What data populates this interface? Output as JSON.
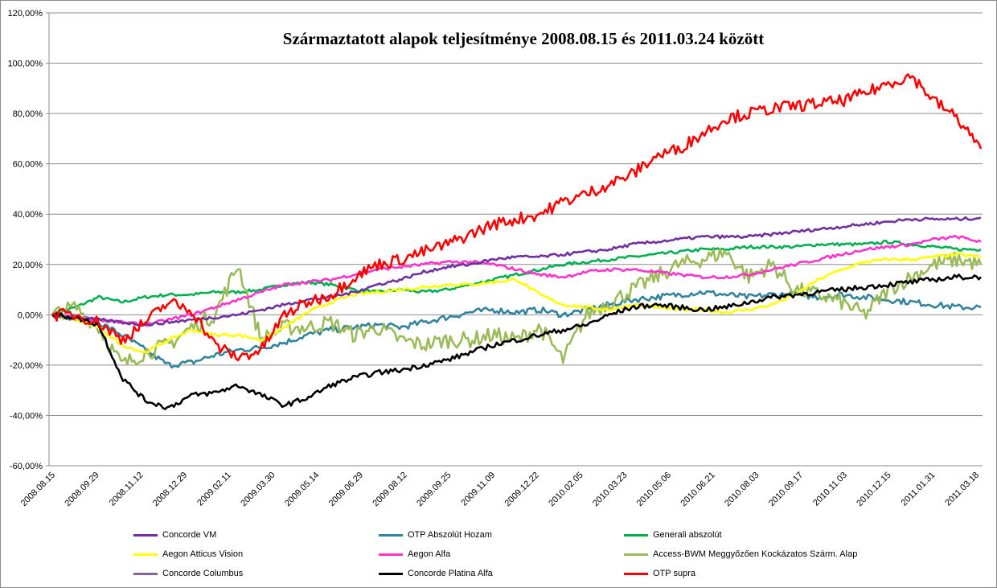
{
  "chart_data": {
    "type": "line",
    "title": "Származtatott  alapok teljesítménye 2008.08.15 és 2011.03.24 között",
    "xlabel": "",
    "ylabel": "",
    "ylim": [
      -60,
      120
    ],
    "yticks": [
      -60,
      -40,
      -20,
      0,
      20,
      40,
      60,
      80,
      100,
      120
    ],
    "ytick_labels": [
      "-60,00%",
      "-40,00%",
      "-20,00%",
      "0,00%",
      "20,00%",
      "40,00%",
      "60,00%",
      "80,00%",
      "100,00%",
      "120,00%"
    ],
    "x_tick_labels": [
      "2008.08.15",
      "2008.09.29",
      "2008.11.12",
      "2008.12.29",
      "2009.02.11",
      "2009.03.30",
      "2009.05.14",
      "2009.06.29",
      "2009.08.12",
      "2009.09.25",
      "2009.11.09",
      "2009.12.22",
      "2010.02.05",
      "2010.03.23",
      "2010.05.06",
      "2010.06.21",
      "2010.08.03",
      "2010.09.17",
      "2010.11.03",
      "2010.12.15",
      "2011.01.31",
      "2011.03.18"
    ],
    "grid": "horizontal",
    "legend_position": "bottom",
    "series": [
      {
        "name": "Concorde VM",
        "color": "#7030a0",
        "values": [
          0,
          -1,
          -2,
          -3,
          -4,
          -3,
          -2,
          -1,
          0,
          2,
          4,
          6,
          7,
          9,
          12,
          14,
          17,
          19,
          20,
          22,
          23,
          23,
          24,
          25,
          26,
          28,
          29,
          30,
          31,
          31,
          31,
          32,
          33,
          34,
          35,
          36,
          37,
          38,
          38,
          38,
          38.5
        ]
      },
      {
        "name": "OTP Abszolút Hozam",
        "color": "#31849b",
        "values": [
          0,
          -1,
          -3,
          -8,
          -14,
          -20,
          -19,
          -16,
          -14,
          -13,
          -11,
          -8,
          -6,
          -5,
          -4,
          -5,
          -3,
          -1,
          1,
          2,
          1,
          2,
          0,
          2,
          4,
          6,
          7,
          8,
          9,
          8,
          7,
          8,
          8,
          7,
          8,
          7,
          6,
          5,
          4,
          3,
          3
        ]
      },
      {
        "name": "Generali abszolút",
        "color": "#00b050",
        "values": [
          0,
          3,
          7,
          5,
          7,
          8,
          8,
          9,
          9,
          10,
          12,
          13,
          12,
          10,
          9,
          10,
          9,
          10,
          12,
          14,
          16,
          18,
          20,
          21,
          22,
          23,
          24,
          25,
          26,
          26,
          27,
          27,
          27,
          28,
          28,
          28,
          29,
          28,
          27,
          26,
          26
        ]
      },
      {
        "name": "Aegon Atticus Vision",
        "color": "#ffff00",
        "values": [
          0,
          -2,
          -5,
          -12,
          -15,
          -10,
          -6,
          -8,
          -8,
          -10,
          -5,
          1,
          5,
          8,
          9,
          10,
          11,
          12,
          12,
          13,
          14,
          8,
          4,
          3,
          2,
          4,
          3,
          2,
          2,
          1,
          2,
          4,
          8,
          14,
          18,
          21,
          22,
          22,
          23,
          24,
          23
        ]
      },
      {
        "name": "Aegon Alfa",
        "color": "#ff33cc",
        "values": [
          0,
          -1,
          -2,
          -3,
          -4,
          -2,
          0,
          3,
          6,
          9,
          12,
          13,
          14,
          16,
          18,
          19,
          20,
          21,
          21,
          20,
          18,
          16,
          15,
          17,
          18,
          18,
          17,
          16,
          15,
          15,
          16,
          18,
          20,
          22,
          24,
          26,
          27,
          28,
          30,
          31,
          29
        ]
      },
      {
        "name": "Access-BWM Meggyőzően Kockázatos Szárm. Alap",
        "color": "#9bbb59",
        "values": [
          0,
          3,
          -5,
          -20,
          -15,
          -12,
          -5,
          0,
          20,
          -10,
          -5,
          -5,
          -3,
          -8,
          -5,
          -10,
          -12,
          -10,
          -10,
          -8,
          -10,
          -5,
          -18,
          0,
          5,
          10,
          15,
          20,
          22,
          25,
          15,
          20,
          10,
          8,
          5,
          0,
          10,
          15,
          20,
          22,
          20
        ]
      },
      {
        "name": "Concorde Columbus",
        "color": "#8064a2",
        "values": []
      },
      {
        "name": "Concorde Platina Alfa",
        "color": "#000000",
        "values": [
          0,
          -1,
          -4,
          -25,
          -34,
          -37,
          -32,
          -31,
          -28,
          -32,
          -36,
          -33,
          -28,
          -25,
          -23,
          -22,
          -20,
          -18,
          -15,
          -12,
          -10,
          -8,
          -6,
          -4,
          0,
          3,
          4,
          3,
          2,
          3,
          5,
          7,
          8,
          9,
          10,
          11,
          12,
          13,
          14,
          15,
          15
        ]
      },
      {
        "name": "OTP supra",
        "color": "#ff0000",
        "values": [
          0,
          0,
          -3,
          -10,
          -3,
          5,
          2,
          -12,
          -17,
          -14,
          0,
          5,
          8,
          15,
          20,
          22,
          25,
          28,
          32,
          36,
          38,
          40,
          45,
          48,
          52,
          56,
          63,
          66,
          72,
          78,
          80,
          82,
          83,
          84,
          85,
          88,
          92,
          95,
          85,
          78,
          66
        ]
      }
    ]
  }
}
